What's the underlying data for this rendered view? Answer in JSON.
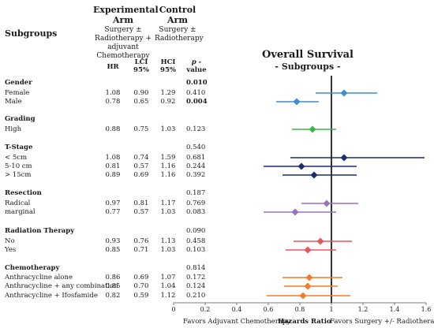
{
  "headers": {
    "subgroups": "Subgroups",
    "experimental_arm": "Experimental Arm",
    "experimental_desc": "Surgery ± Radiotherapy + adjuvant Chemotherapy",
    "control_arm": "Control Arm",
    "control_desc": "Surgery ± Radiotherapy",
    "col_hr": "HR",
    "col_lci": "LCI 95%",
    "col_hci": "HCI 95%",
    "col_p": "p -",
    "col_p2": "value"
  },
  "plot": {
    "title": "Overall Survival",
    "subtitle": "- Subgroups -",
    "footer_left": "Favors Adjuvant Chemotherapy",
    "footer_center": "Hazards Ratio",
    "footer_right": "Favors Surgery +/- Radiotherapy"
  },
  "groups": [
    {
      "label": "Gender",
      "p": "0.010",
      "p_bold": true
    },
    {
      "label": "Grading",
      "p": "",
      "p_bold": false
    },
    {
      "label": "T-Stage",
      "p": "0.540",
      "p_bold": false
    },
    {
      "label": "Resection",
      "p": "0.187",
      "p_bold": false
    },
    {
      "label": "Radiation Therapy",
      "p": "0.090",
      "p_bold": false
    },
    {
      "label": "Chemotherapy",
      "p": "0.814",
      "p_bold": false
    }
  ],
  "rows": [
    {
      "label": "Female",
      "hr": "1.08",
      "lci": "0.90",
      "hci": "1.29",
      "p": "0.410",
      "p_bold": false
    },
    {
      "label": "Male",
      "hr": "0.78",
      "lci": "0.65",
      "hci": "0.92",
      "p": "0.004",
      "p_bold": true
    },
    {
      "label": "High",
      "hr": "0.88",
      "lci": "0.75",
      "hci": "1.03",
      "p": "0.123",
      "p_bold": false
    },
    {
      "label": "< 5cm",
      "hr": "1.08",
      "lci": "0.74",
      "hci": "1.59",
      "p": "0.681",
      "p_bold": false
    },
    {
      "label": "5-10 cm",
      "hr": "0.81",
      "lci": "0.57",
      "hci": "1.16",
      "p": "0.244",
      "p_bold": false
    },
    {
      "label": "> 15cm",
      "hr": "0.89",
      "lci": "0.69",
      "hci": "1.16",
      "p": "0.392",
      "p_bold": false
    },
    {
      "label": "Radical",
      "hr": "0.97",
      "lci": "0.81",
      "hci": "1.17",
      "p": "0.769",
      "p_bold": false
    },
    {
      "label": "marginal",
      "hr": "0.77",
      "lci": "0.57",
      "hci": "1.03",
      "p": "0.083",
      "p_bold": false
    },
    {
      "label": "No",
      "hr": "0.93",
      "lci": "0.76",
      "hci": "1.13",
      "p": "0.458",
      "p_bold": false
    },
    {
      "label": "Yes",
      "hr": "0.85",
      "lci": "0.71",
      "hci": "1.03",
      "p": "0.103",
      "p_bold": false
    },
    {
      "label": "Anthracycline alone",
      "hr": "0.86",
      "lci": "0.69",
      "hci": "1.07",
      "p": "0.172",
      "p_bold": false
    },
    {
      "label": "Anthracycline + any combination",
      "hr": "0.85",
      "lci": "0.70",
      "hci": "1.04",
      "p": "0.124",
      "p_bold": false
    },
    {
      "label": "Anthracycline + Ifosfamide",
      "hr": "0.82",
      "lci": "0.59",
      "hci": "1.12",
      "p": "0.210",
      "p_bold": false
    }
  ],
  "chart_data": {
    "type": "scatter",
    "title": "Overall Survival",
    "subtitle": "- Subgroups -",
    "xlabel": "Hazards Ratio",
    "xlim": [
      0,
      1.6
    ],
    "xticks": [
      "0",
      "0.2",
      "0.4",
      "0.6",
      "0.8",
      "1",
      "1.2",
      "1.4",
      "1.6"
    ],
    "reference_line": 1.0,
    "grid": false,
    "points": [
      {
        "label": "Female",
        "hr": 1.08,
        "lci": 0.9,
        "hci": 1.29,
        "color": "#3a8fd0"
      },
      {
        "label": "Male",
        "hr": 0.78,
        "lci": 0.65,
        "hci": 0.92,
        "color": "#3a8fd0"
      },
      {
        "label": "High",
        "hr": 0.88,
        "lci": 0.75,
        "hci": 1.03,
        "color": "#3cb54a"
      },
      {
        "label": "< 5cm",
        "hr": 1.08,
        "lci": 0.74,
        "hci": 1.59,
        "color": "#1b2c6b"
      },
      {
        "label": "5-10 cm",
        "hr": 0.81,
        "lci": 0.57,
        "hci": 1.16,
        "color": "#1b2c6b"
      },
      {
        "label": "> 15cm",
        "hr": 0.89,
        "lci": 0.69,
        "hci": 1.16,
        "color": "#1b2c6b"
      },
      {
        "label": "Radical",
        "hr": 0.97,
        "lci": 0.81,
        "hci": 1.17,
        "color": "#9b72b8"
      },
      {
        "label": "marginal",
        "hr": 0.77,
        "lci": 0.57,
        "hci": 1.03,
        "color": "#9b72b8"
      },
      {
        "label": "No",
        "hr": 0.93,
        "lci": 0.76,
        "hci": 1.13,
        "color": "#e8555a"
      },
      {
        "label": "Yes",
        "hr": 0.85,
        "lci": 0.71,
        "hci": 1.03,
        "color": "#e8555a"
      },
      {
        "label": "Anthracycline alone",
        "hr": 0.86,
        "lci": 0.69,
        "hci": 1.07,
        "color": "#f07c28"
      },
      {
        "label": "Anthracycline + any combination",
        "hr": 0.85,
        "lci": 0.7,
        "hci": 1.04,
        "color": "#f07c28"
      },
      {
        "label": "Anthracycline + Ifosfamide",
        "hr": 0.82,
        "lci": 0.59,
        "hci": 1.12,
        "color": "#f07c28"
      }
    ]
  }
}
